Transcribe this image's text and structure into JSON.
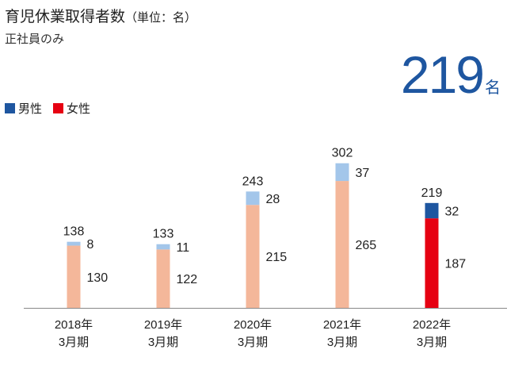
{
  "title": "育児休業取得者数",
  "title_unit": "（単位：名）",
  "subtitle": "正社員のみ",
  "total": {
    "value": "219",
    "unit": "名"
  },
  "legend": [
    {
      "label": "男性",
      "color": "#1e56a0"
    },
    {
      "label": "女性",
      "color": "#e60012"
    }
  ],
  "chart_data": {
    "type": "bar",
    "stacked": true,
    "categories": [
      [
        "2018年",
        "3月期"
      ],
      [
        "2019年",
        "3月期"
      ],
      [
        "2020年",
        "3月期"
      ],
      [
        "2021年",
        "3月期"
      ],
      [
        "2022年",
        "3月期"
      ]
    ],
    "series": [
      {
        "name": "女性",
        "values": [
          130,
          122,
          215,
          265,
          187
        ]
      },
      {
        "name": "男性",
        "values": [
          8,
          11,
          28,
          37,
          32
        ]
      }
    ],
    "totals": [
      138,
      133,
      243,
      302,
      219
    ],
    "colors": {
      "female_past": "#f4b79a",
      "male_past": "#a3c6ea",
      "female_current": "#e60012",
      "male_current": "#1e56a0"
    },
    "highlight_index": 4,
    "ylim": [
      0,
      340
    ],
    "grid": false
  }
}
